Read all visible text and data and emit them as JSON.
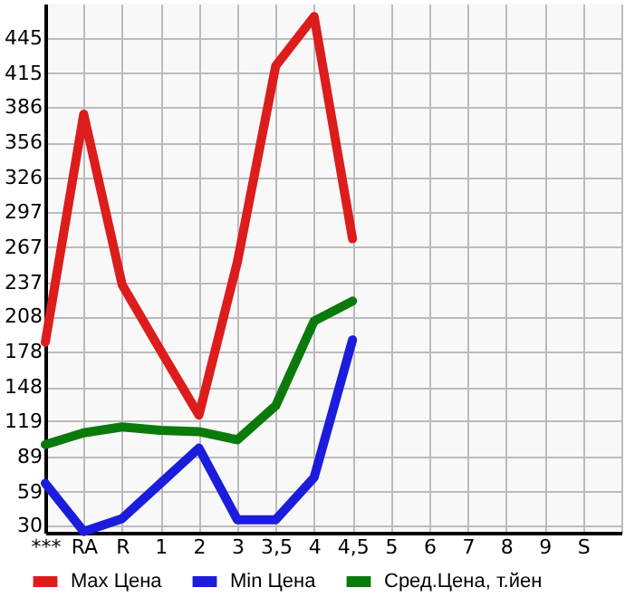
{
  "chart_data": {
    "type": "line",
    "categories": [
      "***",
      "RA",
      "R",
      "1",
      "2",
      "3",
      "3,5",
      "4",
      "4,5",
      "5",
      "6",
      "7",
      "8",
      "9",
      "S",
      null
    ],
    "series": [
      {
        "name": "Max Цена",
        "color": "#dd1c1c",
        "values": [
          186,
          380,
          235,
          179,
          124,
          254,
          421,
          463,
          274,
          null,
          null,
          null,
          null,
          null,
          null,
          null
        ]
      },
      {
        "name": "Min Цена",
        "color": "#1c1cdd",
        "values": [
          66,
          25,
          36,
          66,
          96,
          35,
          35,
          71,
          188,
          null,
          null,
          null,
          null,
          null,
          null,
          null
        ]
      },
      {
        "name": "Сред.Цена, т.йен",
        "color": "#0a7a0a",
        "values": [
          99,
          109,
          114,
          111,
          110,
          103,
          132,
          204,
          221,
          null,
          null,
          null,
          null,
          null,
          null,
          null
        ]
      }
    ],
    "ylim": [
      24,
      474
    ],
    "yticks": [
      30,
      59,
      89,
      119,
      148,
      178,
      208,
      237,
      267,
      297,
      326,
      356,
      386,
      415,
      445
    ],
    "grid": true,
    "legend": "bottom",
    "marker": "none",
    "line_style": "solid"
  }
}
